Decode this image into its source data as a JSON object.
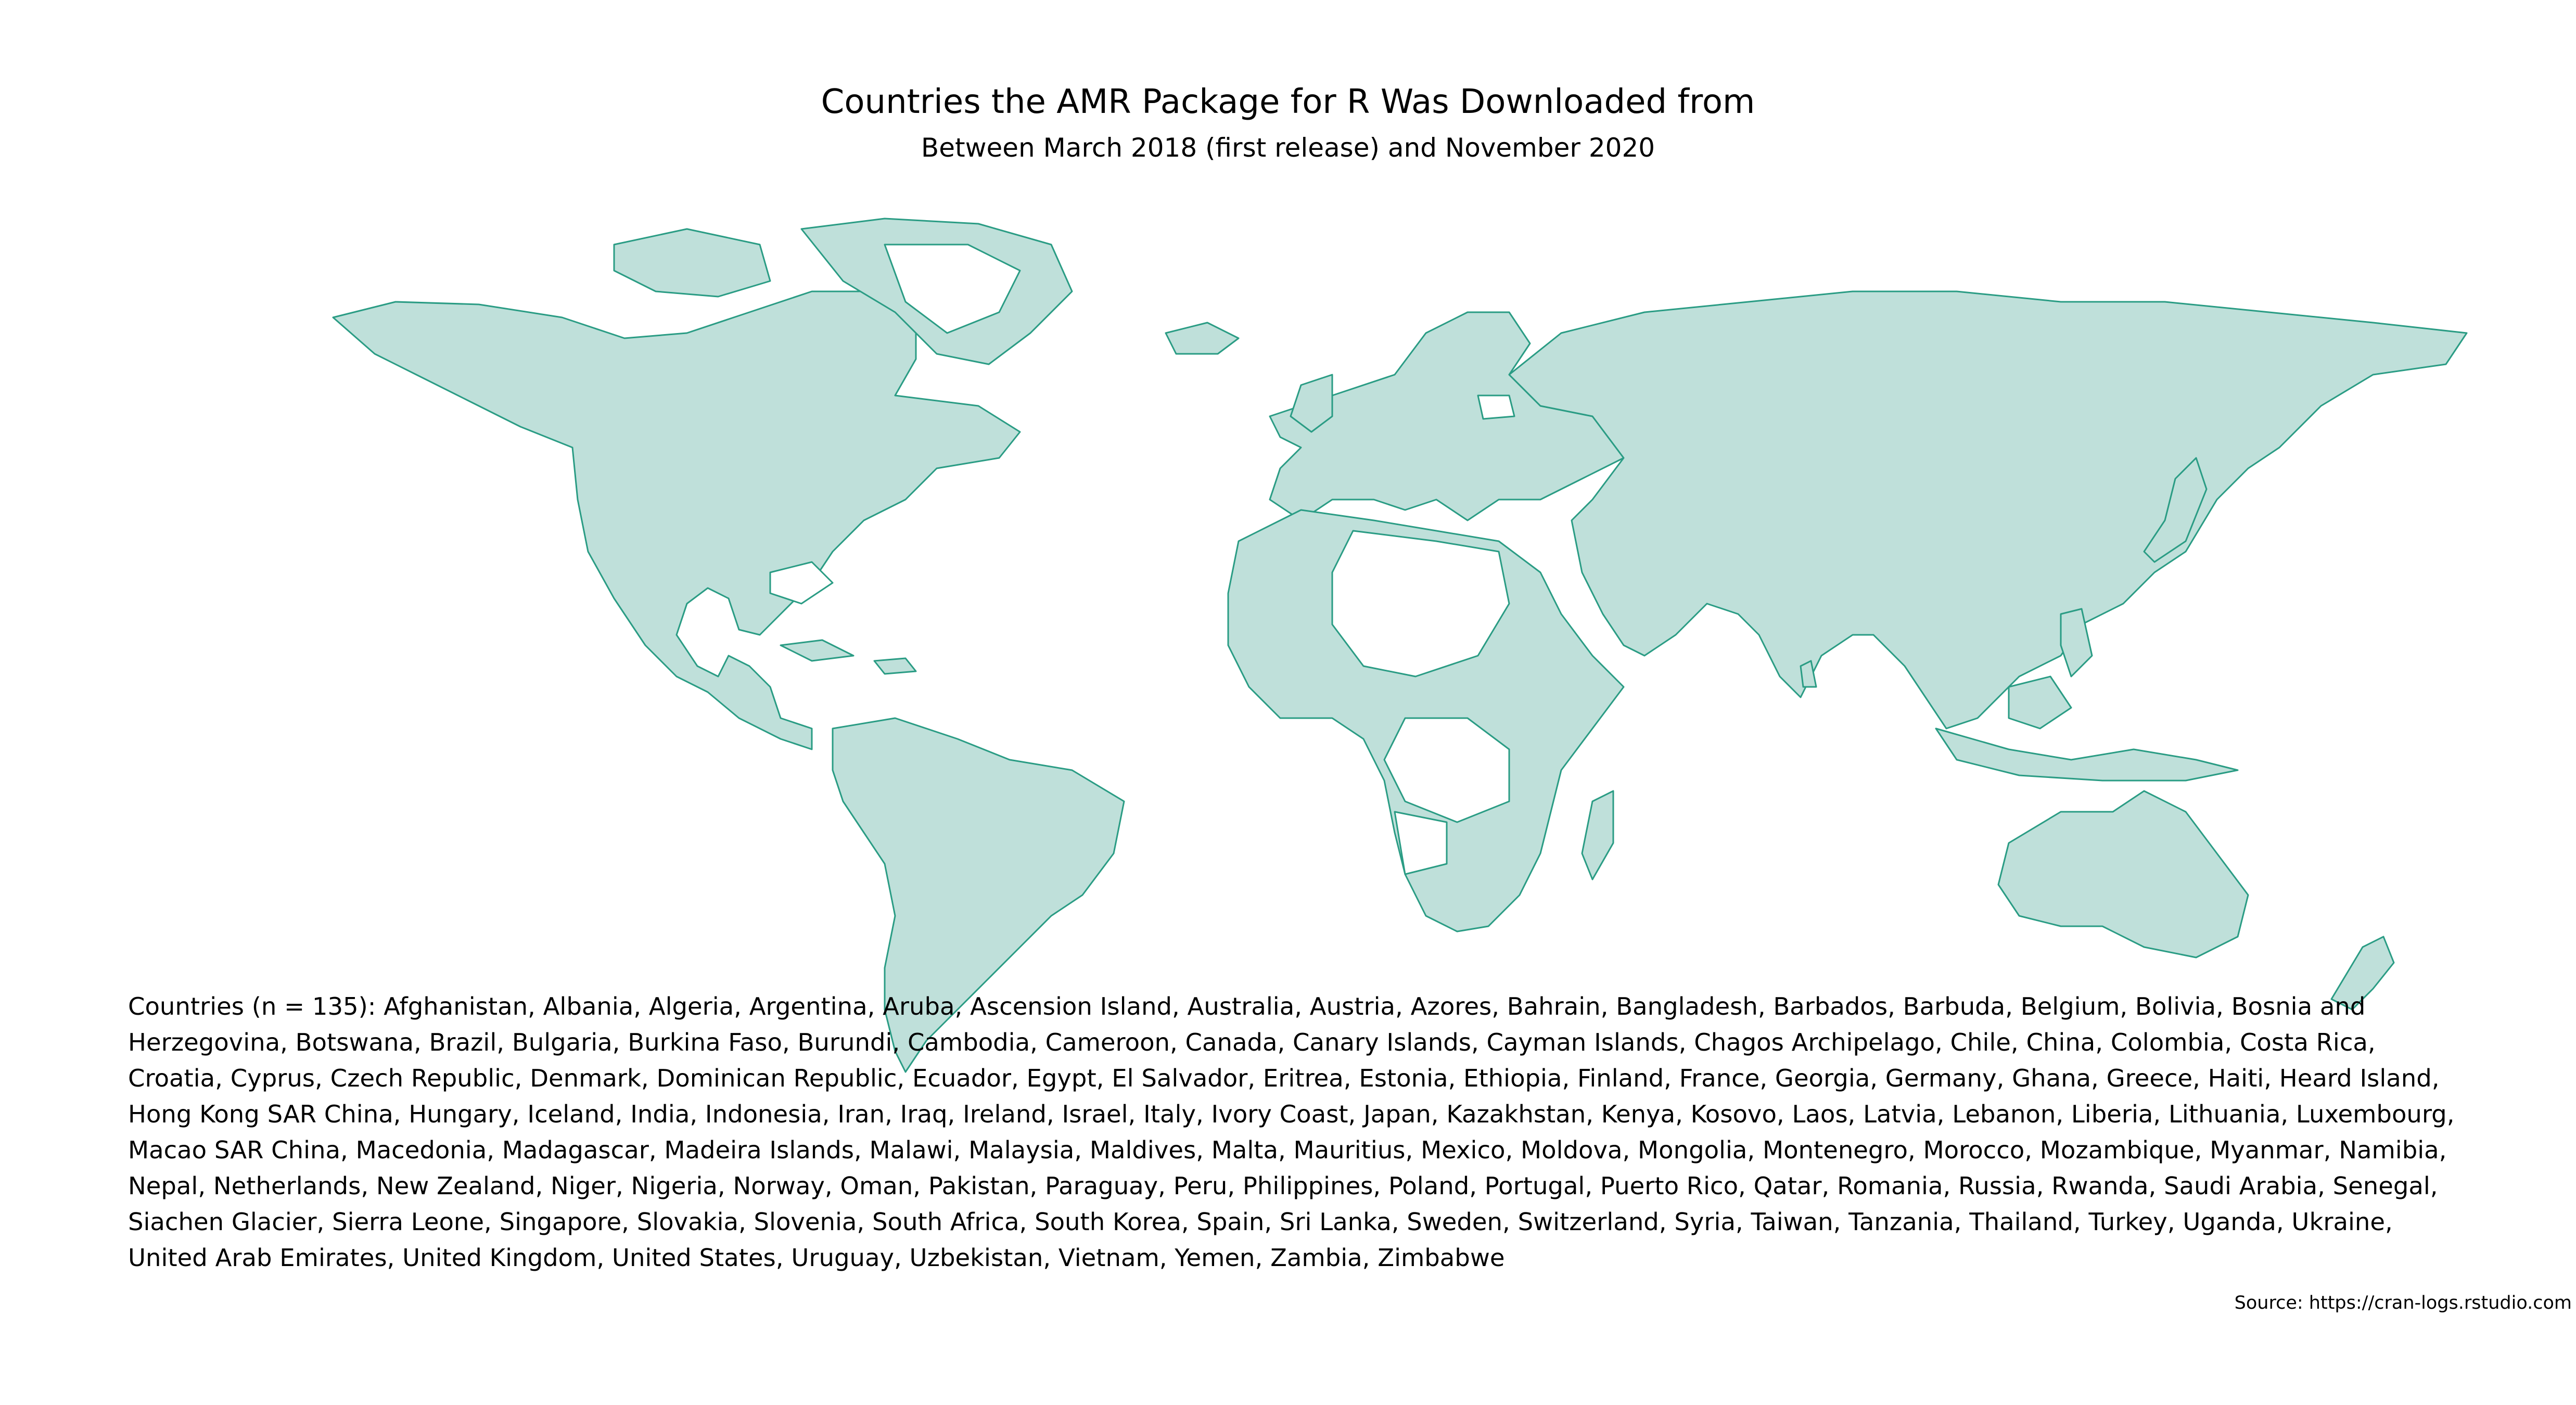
{
  "title": "Countries the AMR Package for R Was Downloaded from",
  "subtitle": "Between March 2018 (first release) and November 2020",
  "caption": "Countries (n = 135): Afghanistan, Albania, Algeria, Argentina, Aruba, Ascension Island, Australia, Austria, Azores, Bahrain, Bangladesh, Barbados, Barbuda, Belgium, Bolivia, Bosnia and Herzegovina, Botswana, Brazil, Bulgaria, Burkina Faso, Burundi, Cambodia, Cameroon, Canada, Canary Islands, Cayman Islands, Chagos Archipelago, Chile, China, Colombia, Costa Rica, Croatia, Cyprus, Czech Republic, Denmark, Dominican Republic, Ecuador, Egypt, El Salvador, Eritrea, Estonia, Ethiopia, Finland, France, Georgia, Germany, Ghana, Greece, Haiti, Heard Island, Hong Kong SAR China, Hungary, Iceland, India, Indonesia, Iran, Iraq, Ireland, Israel, Italy, Ivory Coast, Japan, Kazakhstan, Kenya, Kosovo, Laos, Latvia, Lebanon, Liberia, Lithuania, Luxembourg, Macao SAR China, Macedonia, Madagascar, Madeira Islands, Malawi, Malaysia, Maldives, Malta, Mauritius, Mexico, Moldova, Mongolia, Montenegro, Morocco, Mozambique, Myanmar, Namibia, Nepal, Netherlands, New Zealand, Niger, Nigeria, Norway, Oman, Pakistan, Paraguay, Peru, Philippines, Poland, Portugal, Puerto Rico, Qatar, Romania, Russia, Rwanda, Saudi Arabia, Senegal, Siachen Glacier, Sierra Leone, Singapore, Slovakia, Slovenia, South Africa, South Korea, Spain, Sri Lanka, Sweden, Switzerland, Syria, Taiwan, Tanzania, Thailand, Turkey, Uganda, Ukraine, United Arab Emirates, United Kingdom, United States, Uruguay, Uzbekistan, Vietnam, Yemen, Zambia, Zimbabwe",
  "source": "Source: https://cran-logs.rstudio.com",
  "colors": {
    "downloaded_fill": "#bfe0da",
    "border": "#2a9c84",
    "not_downloaded_fill": "#ffffff"
  },
  "map": {
    "type": "choropleth",
    "projection": "equirectangular",
    "highlighted_fill": "downloaded_fill",
    "other_fill": "not_downloaded_fill"
  }
}
